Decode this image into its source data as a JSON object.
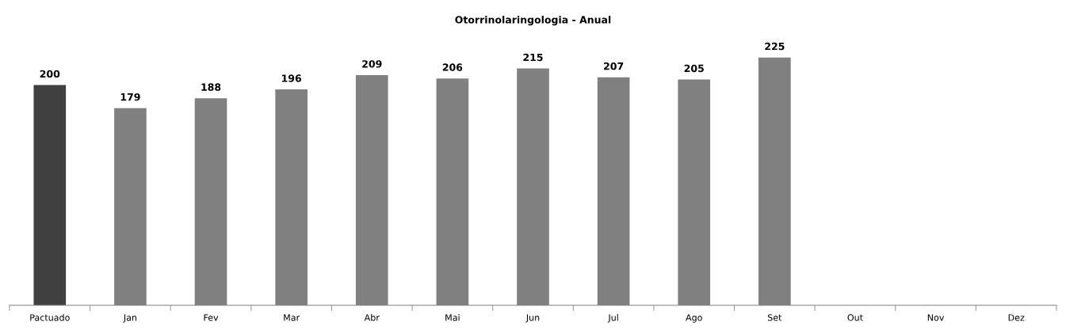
{
  "chart_data": {
    "type": "bar",
    "title": "Otorrinolaringologia - Anual",
    "categories": [
      "Pactuado",
      "Jan",
      "Fev",
      "Mar",
      "Abr",
      "Mai",
      "Jun",
      "Jul",
      "Ago",
      "Set",
      "Out",
      "Nov",
      "Dez"
    ],
    "values": [
      200,
      179,
      188,
      196,
      209,
      206,
      215,
      207,
      205,
      225,
      null,
      null,
      null
    ],
    "colors": [
      "#404040",
      "#808080",
      "#808080",
      "#808080",
      "#808080",
      "#808080",
      "#808080",
      "#808080",
      "#808080",
      "#808080",
      "#808080",
      "#808080",
      "#808080"
    ],
    "data_labels": true,
    "grid": false,
    "legend": false
  }
}
